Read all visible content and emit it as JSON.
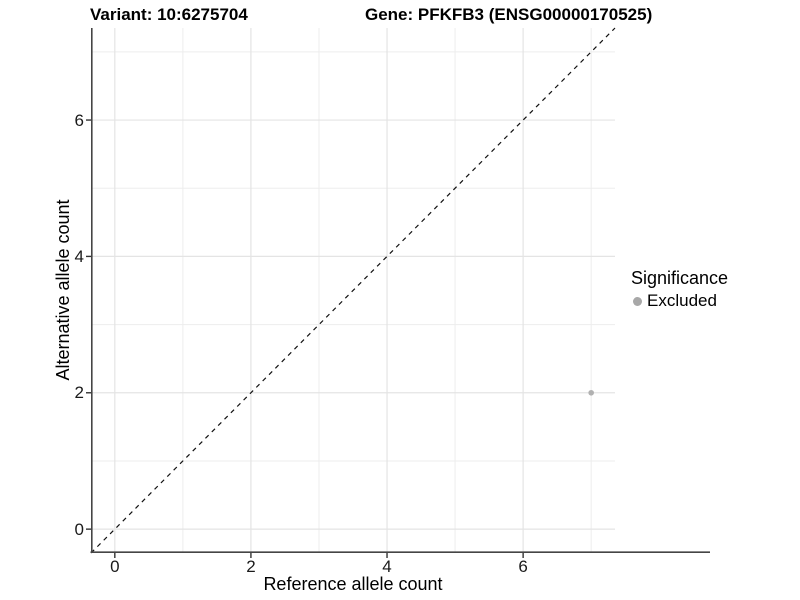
{
  "figure": {
    "variant_title": "Variant: 10:6275704",
    "gene_title": "Gene: PFKFB3 (ENSG00000170525)"
  },
  "axes": {
    "x_label": "Reference allele count",
    "y_label": "Alternative allele count"
  },
  "legend": {
    "title": "Significance",
    "items": [
      {
        "label": "Excluded",
        "color": "#a8a8a8",
        "marker": "circle"
      }
    ]
  },
  "colors": {
    "background": "#ffffff",
    "grid_major": "#e4e4e4",
    "grid_minor": "#ededed",
    "axis_line": "#454545",
    "tick": "#333333",
    "text": "#000000",
    "identity_line": "#111111",
    "point": "#b1b1b1"
  },
  "chart_data": {
    "type": "scatter",
    "title": "Variant: 10:6275704 — Gene: PFKFB3 (ENSG00000170525)",
    "xlabel": "Reference allele count",
    "ylabel": "Alternative allele count",
    "xlim": [
      -0.35,
      7.35
    ],
    "ylim": [
      -0.35,
      7.35
    ],
    "x_major_ticks": [
      0,
      2,
      4,
      6
    ],
    "x_minor_ticks": [
      1,
      3,
      5,
      7
    ],
    "y_major_ticks": [
      0,
      2,
      4,
      6
    ],
    "y_minor_ticks": [
      1,
      3,
      5,
      7
    ],
    "grid": "major and minor gridlines on white panel",
    "legend_position": "right",
    "identity_line": {
      "style": "dashed",
      "slope": 1,
      "intercept": 0
    },
    "series": [
      {
        "name": "Excluded",
        "color": "#b1b1b1",
        "points": [
          {
            "x": 7,
            "y": 2
          }
        ]
      }
    ]
  }
}
